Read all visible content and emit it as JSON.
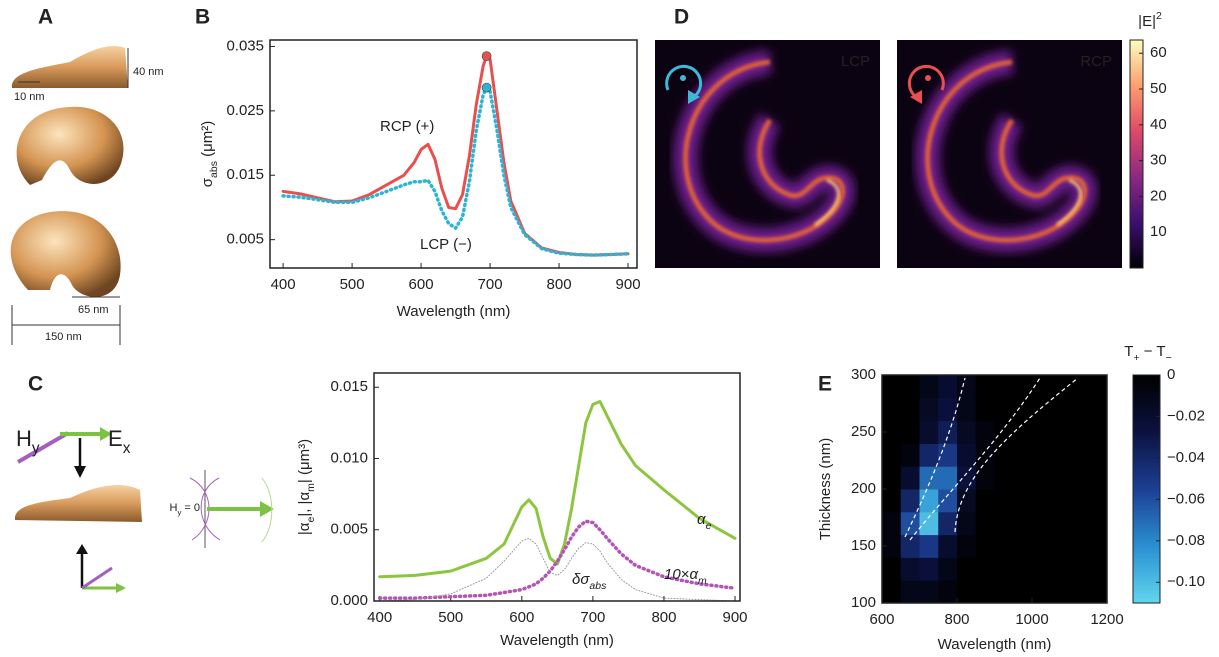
{
  "panels": {
    "a": "A",
    "b": "B",
    "c": "C",
    "d": "D",
    "e": "E"
  },
  "panel_a": {
    "height": "40 nm",
    "thickness": "10 nm",
    "width": "65 nm",
    "length": "150 nm"
  },
  "panel_c_diagram": {
    "h": [
      {
        "text": "H"
      },
      {
        "sub": "y"
      }
    ],
    "e": [
      {
        "text": "E"
      },
      {
        "sub": "x"
      }
    ],
    "h0": [
      {
        "text": "H"
      },
      {
        "sub": "y"
      },
      {
        "text": " = 0"
      }
    ]
  },
  "chart_data": [
    {
      "type": "line",
      "x": [
        400,
        425,
        450,
        475,
        500,
        525,
        550,
        575,
        590,
        600,
        610,
        620,
        630,
        640,
        650,
        660,
        670,
        680,
        690,
        695,
        700,
        710,
        720,
        730,
        750,
        775,
        800,
        825,
        850,
        875,
        900
      ],
      "xlim": [
        381,
        913
      ],
      "ylim": [
        0.0006,
        0.036
      ],
      "xticks": [
        400,
        500,
        600,
        700,
        800,
        900
      ],
      "yticks": [
        0.005,
        0.015,
        0.025,
        0.035
      ],
      "xlabel": "Wavelength (nm)",
      "ylabel": [
        {
          "text": "σ"
        },
        {
          "sub": "abs"
        },
        {
          "text": " (μm²)"
        }
      ],
      "series": [
        {
          "name": "RCP (+)",
          "color": "#e8504f",
          "style": "solid",
          "peak_marker": true,
          "values": [
            0.0125,
            0.0121,
            0.0115,
            0.0109,
            0.011,
            0.012,
            0.0135,
            0.015,
            0.017,
            0.019,
            0.0198,
            0.0175,
            0.013,
            0.01,
            0.0098,
            0.012,
            0.018,
            0.026,
            0.032,
            0.0335,
            0.033,
            0.025,
            0.017,
            0.011,
            0.006,
            0.0037,
            0.003,
            0.0027,
            0.0026,
            0.0027,
            0.0028
          ]
        },
        {
          "name": "LCP (−)",
          "color": "#2bb5d5",
          "style": "dotted",
          "peak_marker": true,
          "values": [
            0.0118,
            0.0116,
            0.0112,
            0.0108,
            0.0108,
            0.0115,
            0.0125,
            0.0135,
            0.014,
            0.014,
            0.0142,
            0.0125,
            0.0095,
            0.0075,
            0.0068,
            0.0085,
            0.014,
            0.022,
            0.0275,
            0.0286,
            0.028,
            0.022,
            0.015,
            0.01,
            0.0058,
            0.0036,
            0.0029,
            0.0027,
            0.0026,
            0.0027,
            0.0028
          ]
        }
      ]
    },
    {
      "type": "line",
      "x": [
        400,
        450,
        500,
        550,
        575,
        600,
        610,
        620,
        630,
        640,
        650,
        660,
        670,
        680,
        690,
        700,
        710,
        720,
        740,
        760,
        800,
        850,
        900
      ],
      "xlim": [
        392,
        907
      ],
      "ylim": [
        0,
        0.016
      ],
      "xticks": [
        400,
        500,
        600,
        700,
        800,
        900
      ],
      "yticks": [
        {
          "value": 0,
          "label": "0.000"
        },
        0.005,
        {
          "value": 0.01,
          "label": "0.010"
        },
        0.015
      ],
      "xlabel": "Wavelength (nm)",
      "ylabel": [
        {
          "text": "|α"
        },
        {
          "sub": "e"
        },
        {
          "text": "|, |α"
        },
        {
          "sub": "m"
        },
        {
          "text": "| (μm³)"
        }
      ],
      "series": [
        {
          "name": [
            {
              "text": "α"
            },
            {
              "sub": "e"
            }
          ],
          "color": "#8cc63f",
          "style": "solid",
          "values": [
            0.0017,
            0.0018,
            0.0021,
            0.003,
            0.004,
            0.0066,
            0.0071,
            0.0065,
            0.0045,
            0.003,
            0.0026,
            0.004,
            0.0065,
            0.0095,
            0.0125,
            0.0138,
            0.014,
            0.013,
            0.011,
            0.0095,
            0.0078,
            0.0058,
            0.0044
          ]
        },
        {
          "name": [
            {
              "text": "10×α"
            },
            {
              "sub": "m"
            }
          ],
          "color": "#b455b6",
          "style": "dotted",
          "values": [
            0.0002,
            0.0002,
            0.0003,
            0.0004,
            0.0006,
            0.0008,
            0.001,
            0.0012,
            0.0016,
            0.0021,
            0.0028,
            0.0036,
            0.0045,
            0.0052,
            0.0056,
            0.0055,
            0.005,
            0.0044,
            0.0033,
            0.0025,
            0.0017,
            0.0012,
            0.0009
          ]
        },
        {
          "name": [
            {
              "text": "δσ"
            },
            {
              "sub": "abs"
            }
          ],
          "color": "#999999",
          "style": "thin-dotted",
          "values": [
            0,
            0.0001,
            0.0005,
            0.0016,
            0.0028,
            0.0042,
            0.0044,
            0.004,
            0.003,
            0.002,
            0.0018,
            0.0022,
            0.003,
            0.0037,
            0.0041,
            0.004,
            0.0035,
            0.0027,
            0.0015,
            0.0008,
            0.0002,
            0.0001,
            0
          ]
        }
      ]
    },
    {
      "type": "colorbar",
      "title": [
        {
          "text": "|E|"
        },
        {
          "sup": "2"
        }
      ],
      "panels": [
        "LCP",
        "RCP"
      ],
      "zlim": [
        0,
        63.7
      ],
      "zticks": [
        10,
        20,
        30,
        40,
        50,
        60
      ],
      "colormap": [
        "#000004",
        "#3b0f70",
        "#8c2981",
        "#de4968",
        "#fe9f6d",
        "#fcfdbf"
      ]
    },
    {
      "type": "heatmap",
      "title": [
        {
          "text": "T"
        },
        {
          "sub": "+"
        },
        {
          "text": " − T"
        },
        {
          "sub": "−"
        }
      ],
      "xlabel": "Wavelength (nm)",
      "ylabel": "Thickness (nm)",
      "x": [
        625,
        675,
        725,
        775,
        825,
        875,
        925,
        975,
        1025,
        1075,
        1125,
        1175
      ],
      "y": [
        110,
        130,
        150,
        170,
        190,
        210,
        230,
        250,
        270,
        290
      ],
      "z": [
        [
          0,
          -0.01,
          -0.01,
          -0.005,
          0,
          0,
          0,
          0,
          0,
          0,
          0,
          0
        ],
        [
          0,
          -0.02,
          -0.025,
          -0.01,
          0,
          0,
          0,
          0,
          0,
          0,
          0,
          0
        ],
        [
          -0.005,
          -0.04,
          -0.05,
          -0.02,
          -0.005,
          0,
          0,
          0,
          0,
          0,
          0,
          0
        ],
        [
          -0.005,
          -0.06,
          -0.1,
          -0.04,
          -0.01,
          0,
          0,
          0,
          0,
          0,
          0,
          0
        ],
        [
          0,
          -0.04,
          -0.09,
          -0.06,
          -0.015,
          0,
          0,
          0,
          0,
          0,
          0,
          0
        ],
        [
          0,
          -0.02,
          -0.07,
          -0.07,
          -0.025,
          -0.005,
          0,
          0,
          0,
          0,
          0,
          0
        ],
        [
          0,
          -0.005,
          -0.04,
          -0.05,
          -0.02,
          -0.005,
          0,
          0,
          0,
          0,
          0,
          0
        ],
        [
          0,
          0,
          -0.02,
          -0.035,
          -0.015,
          -0.005,
          0,
          0,
          0,
          0,
          0,
          0
        ],
        [
          0,
          0,
          -0.015,
          -0.025,
          -0.01,
          0,
          0,
          0,
          0,
          0,
          0,
          0
        ],
        [
          0,
          0,
          -0.01,
          -0.02,
          -0.01,
          0,
          0,
          0,
          0,
          0,
          0,
          0
        ]
      ],
      "xlim": [
        600,
        1200
      ],
      "ylim": [
        100,
        300
      ],
      "xticks": [
        600,
        800,
        1000,
        1200
      ],
      "yticks": [
        100,
        150,
        200,
        250,
        300
      ],
      "zlim": [
        -0.11,
        0
      ],
      "zticks": [
        0,
        {
          "value": -0.02,
          "label": "−0.02"
        },
        {
          "value": -0.04,
          "label": "−0.04"
        },
        {
          "value": -0.06,
          "label": "−0.06"
        },
        {
          "value": -0.08,
          "label": "−0.08"
        },
        {
          "value": -0.1,
          "label": "−0.10"
        }
      ],
      "colormap": [
        "#62d6ee",
        "#2a8fd0",
        "#1c3f94",
        "#0b1240",
        "#000000"
      ]
    }
  ]
}
